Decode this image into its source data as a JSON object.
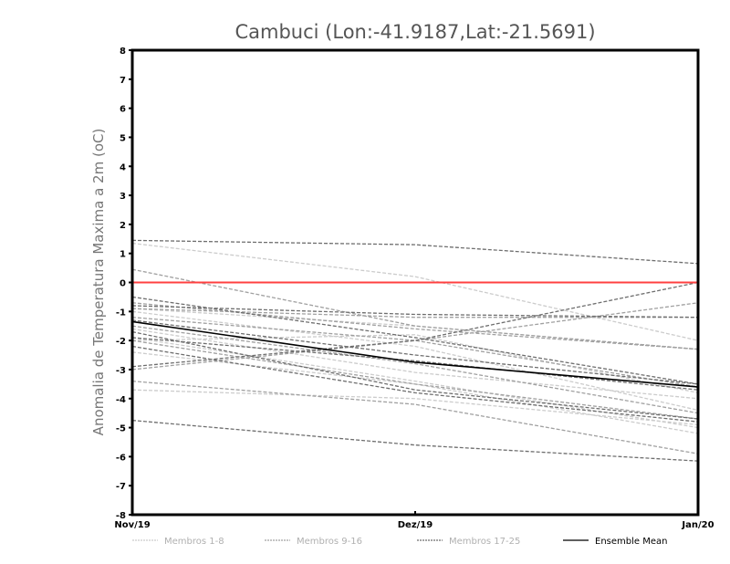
{
  "chart_data": {
    "type": "line",
    "title": "Cambuci (Lon:-41.9187,Lat:-21.5691)",
    "ylabel": "Anomalia de Temperatura Maxima a 2m (oC)",
    "xlabel": "",
    "categories": [
      "Nov/19",
      "Dez/19",
      "Jan/20"
    ],
    "ylim": [
      -8,
      8
    ],
    "yticks": [
      -8,
      -7,
      -6,
      -5,
      -4,
      -3,
      -2,
      -1,
      0,
      1,
      2,
      3,
      4,
      5,
      6,
      7,
      8
    ],
    "reference_line": {
      "value": 0,
      "color": "#ff4040"
    },
    "legend_position": "bottom",
    "groups": [
      {
        "name": "Membros 1-8",
        "color": "#cccccc",
        "dashed": true,
        "series": [
          [
            1.35,
            0.2,
            -2.0
          ],
          [
            -0.9,
            -1.5,
            -2.3
          ],
          [
            -1.6,
            -3.1,
            -4.0
          ],
          [
            -2.4,
            -3.5,
            -5.2
          ],
          [
            -3.7,
            -4.0,
            -4.9
          ],
          [
            -2.0,
            -1.8,
            -3.8
          ],
          [
            -1.0,
            -2.2,
            -4.4
          ],
          [
            -1.9,
            -3.4,
            -5.0
          ]
        ]
      },
      {
        "name": "Membros 9-16",
        "color": "#a0a0a0",
        "dashed": true,
        "series": [
          [
            0.45,
            -1.5,
            -2.3
          ],
          [
            -0.7,
            -1.6,
            -2.3
          ],
          [
            -1.2,
            -2.0,
            -3.6
          ],
          [
            -1.5,
            -2.8,
            -4.5
          ],
          [
            -3.0,
            -2.0,
            -0.7
          ],
          [
            -3.4,
            -4.2,
            -5.9
          ],
          [
            -0.9,
            -1.2,
            -1.2
          ],
          [
            -2.0,
            -3.5,
            -4.7
          ]
        ]
      },
      {
        "name": "Membros 17-25",
        "color": "#6e6e6e",
        "dashed": true,
        "series": [
          [
            1.45,
            1.3,
            0.65
          ],
          [
            -0.5,
            -1.9,
            -3.5
          ],
          [
            -2.9,
            -2.0,
            0.0
          ],
          [
            -4.75,
            -5.6,
            -6.15
          ],
          [
            -1.3,
            -2.5,
            -3.5
          ],
          [
            -1.7,
            -3.7,
            -4.7
          ],
          [
            -1.9,
            -2.7,
            -3.7
          ],
          [
            -0.8,
            -1.1,
            -1.2
          ],
          [
            -2.2,
            -3.8,
            -4.8
          ]
        ]
      },
      {
        "name": "Ensemble Mean",
        "color": "#000000",
        "dashed": false,
        "series": [
          [
            -1.35,
            -2.75,
            -3.6
          ]
        ]
      }
    ]
  }
}
